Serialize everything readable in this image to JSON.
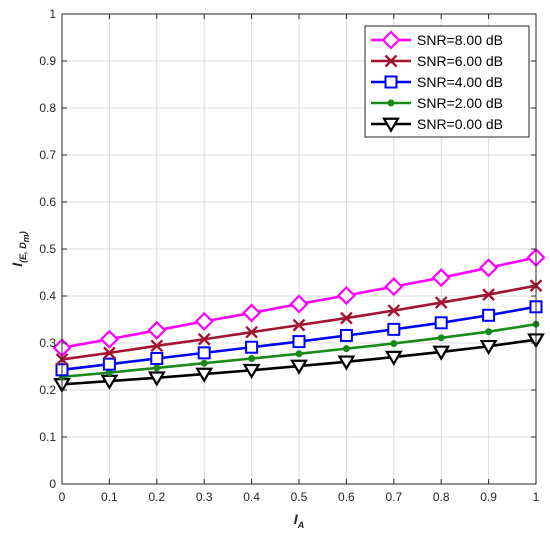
{
  "chart_data": {
    "type": "line",
    "x": [
      0,
      0.1,
      0.2,
      0.3,
      0.4,
      0.5,
      0.6,
      0.7,
      0.8,
      0.9,
      1
    ],
    "xlim": [
      0,
      1
    ],
    "ylim": [
      0,
      1
    ],
    "xticks": [
      "0",
      "0.1",
      "0.2",
      "0.3",
      "0.4",
      "0.5",
      "0.6",
      "0.7",
      "0.8",
      "0.9",
      "1"
    ],
    "yticks": [
      "0",
      "0.1",
      "0.2",
      "0.3",
      "0.4",
      "0.5",
      "0.6",
      "0.7",
      "0.8",
      "0.9",
      "1"
    ],
    "xlabel": {
      "main": "I",
      "sub": "A"
    },
    "ylabel": {
      "main": "I",
      "sub": "(E, D",
      "subsub": "m",
      "close": ")"
    },
    "grid": true,
    "legend_position": "top-right",
    "series": [
      {
        "name": "SNR=8.00 dB",
        "color": "#ff00ff",
        "marker": "diamond",
        "values": [
          0.29,
          0.308,
          0.327,
          0.346,
          0.364,
          0.383,
          0.401,
          0.42,
          0.439,
          0.46,
          0.482
        ]
      },
      {
        "name": "SNR=6.00 dB",
        "color": "#a2142f",
        "marker": "x",
        "values": [
          0.265,
          0.279,
          0.294,
          0.308,
          0.323,
          0.338,
          0.353,
          0.369,
          0.386,
          0.403,
          0.422
        ]
      },
      {
        "name": "SNR=4.00 dB",
        "color": "#0000ff",
        "marker": "square",
        "values": [
          0.243,
          0.255,
          0.267,
          0.279,
          0.291,
          0.303,
          0.316,
          0.329,
          0.343,
          0.359,
          0.377
        ]
      },
      {
        "name": "SNR=2.00 dB",
        "color": "#1a8a1a",
        "marker": "dot",
        "values": [
          0.228,
          0.237,
          0.247,
          0.257,
          0.267,
          0.277,
          0.288,
          0.299,
          0.311,
          0.324,
          0.34
        ]
      },
      {
        "name": "SNR=0.00 dB",
        "color": "#000000",
        "marker": "triangle-down",
        "values": [
          0.212,
          0.219,
          0.226,
          0.234,
          0.242,
          0.251,
          0.26,
          0.27,
          0.281,
          0.293,
          0.307
        ]
      }
    ]
  }
}
